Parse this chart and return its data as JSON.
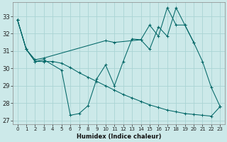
{
  "xlabel": "Humidex (Indice chaleur)",
  "background_color": "#cce9e9",
  "grid_color": "#aad4d4",
  "line_color": "#006666",
  "xlim": [
    -0.5,
    23.5
  ],
  "ylim": [
    26.8,
    33.8
  ],
  "yticks": [
    27,
    28,
    29,
    30,
    31,
    32,
    33
  ],
  "ytick_labels": [
    "27",
    "28",
    "29",
    "30",
    "31",
    "32",
    "33"
  ],
  "xticks": [
    0,
    1,
    2,
    3,
    4,
    5,
    6,
    7,
    8,
    9,
    10,
    11,
    12,
    13,
    14,
    15,
    16,
    17,
    18,
    19,
    20,
    21,
    22,
    23
  ],
  "line1_x": [
    0,
    1,
    2,
    3
  ],
  "line1_y": [
    32.8,
    31.1,
    30.4,
    30.4
  ],
  "line2_x": [
    0,
    1,
    2,
    3,
    5,
    6,
    7,
    8,
    9,
    10,
    11,
    12,
    13,
    14,
    15,
    16,
    17,
    18,
    19,
    20,
    21,
    22,
    23
  ],
  "line2_y": [
    32.8,
    31.1,
    30.4,
    30.5,
    29.9,
    27.3,
    27.4,
    27.85,
    29.4,
    30.2,
    29.0,
    30.4,
    31.7,
    31.65,
    31.1,
    32.4,
    31.85,
    33.5,
    32.5,
    31.5,
    30.4,
    28.9,
    27.8
  ],
  "line3_x": [
    0,
    1,
    2,
    3,
    10,
    11,
    14,
    15,
    16,
    17,
    18,
    19,
    20
  ],
  "line3_y": [
    32.8,
    31.1,
    30.5,
    30.6,
    31.6,
    31.5,
    31.65,
    32.5,
    31.85,
    33.5,
    32.5,
    32.5,
    31.5
  ],
  "line4_x": [
    3,
    4,
    5,
    6,
    7,
    8,
    9,
    10,
    11,
    12,
    13,
    14,
    15,
    16,
    17,
    18,
    19,
    20,
    21,
    22,
    23
  ],
  "line4_y": [
    30.4,
    30.4,
    30.3,
    30.05,
    29.75,
    29.5,
    29.25,
    29.0,
    28.75,
    28.5,
    28.3,
    28.1,
    27.9,
    27.75,
    27.6,
    27.5,
    27.4,
    27.35,
    27.3,
    27.25,
    27.8
  ]
}
